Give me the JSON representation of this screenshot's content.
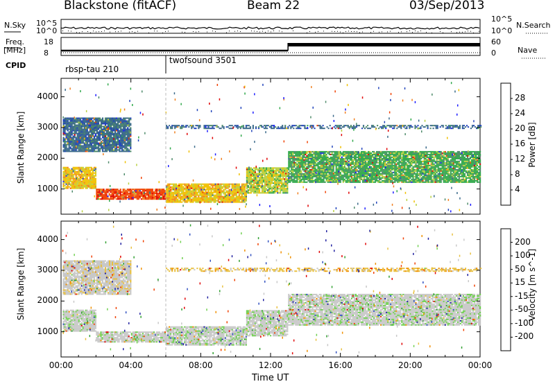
{
  "header": {
    "station": "Blackstone (fitACF)",
    "beam": "Beam 22",
    "date": "03/Sep/2013"
  },
  "summary": {
    "nsky_label": "N.Sky",
    "nsearch_label": "N.Search",
    "freq_label_1": "Freq.",
    "freq_label_2": "[MHz]",
    "nave_label": "Nave",
    "cpid_label": "CPID",
    "nsky_ticks": [
      "10^5",
      "10^0"
    ],
    "freq_ticks": [
      "18",
      "8"
    ],
    "nave_ticks": [
      "60",
      "0"
    ],
    "cpid_segments": [
      {
        "name": "rbsp-tau 210",
        "start_hr": 0,
        "end_hr": 6
      },
      {
        "name": "twofsound 3501",
        "start_hr": 6,
        "end_hr": 24
      }
    ]
  },
  "x_axis": {
    "label": "Time UT",
    "ticks": [
      "00:00",
      "04:00",
      "08:00",
      "12:00",
      "16:00",
      "20:00",
      "00:00"
    ]
  },
  "colors": {
    "power": [
      "#1a1aff",
      "#2244bb",
      "#3a6a8a",
      "#4e8a6a",
      "#2fa84a",
      "#b8d040",
      "#f0c000",
      "#f08020",
      "#f04000",
      "#e00000"
    ],
    "velocity": [
      "#e00000",
      "#f04000",
      "#f09000",
      "#e8c040",
      "#c8c8c8",
      "#c8c8c8",
      "#70d050",
      "#30a030",
      "#3050c0",
      "#2020a0"
    ]
  },
  "chart_data": [
    {
      "type": "heatmap",
      "title": "",
      "xlabel": "Time UT",
      "ylabel": "Slant Range [km]",
      "xlim": [
        0,
        24
      ],
      "ylim": [
        180,
        4600
      ],
      "yticks": [
        "1000",
        "2000",
        "3000",
        "4000"
      ],
      "colorbar_label": "Power [dB]",
      "colorbar_ticks": [
        "4",
        "8",
        "12",
        "16",
        "20",
        "24",
        "28"
      ],
      "colorbar_range": [
        0,
        30
      ],
      "echo_regions": [
        {
          "t0": 0.1,
          "t1": 2.0,
          "r0": 1000,
          "r1": 1700,
          "value": 20
        },
        {
          "t0": 2.0,
          "t1": 6.0,
          "r0": 650,
          "r1": 1000,
          "value": 24
        },
        {
          "t0": 6.0,
          "t1": 10.6,
          "r0": 550,
          "r1": 1150,
          "value": 20
        },
        {
          "t0": 10.6,
          "t1": 13.0,
          "r0": 850,
          "r1": 1700,
          "value": 16
        },
        {
          "t0": 13.0,
          "t1": 24.0,
          "r0": 1200,
          "r1": 2200,
          "value": 14
        },
        {
          "t0": 0.1,
          "t1": 4.0,
          "r0": 2200,
          "r1": 3300,
          "value": 6
        },
        {
          "t0": 6.0,
          "t1": 24.0,
          "r0": 2950,
          "r1": 3050,
          "value": 6
        }
      ]
    },
    {
      "type": "heatmap",
      "title": "",
      "xlabel": "Time UT",
      "ylabel": "Slant Range [km]",
      "xlim": [
        0,
        24
      ],
      "ylim": [
        180,
        4600
      ],
      "yticks": [
        "1000",
        "2000",
        "3000",
        "4000"
      ],
      "colorbar_label": "Velocity [m s^-1]",
      "colorbar_ticks": [
        "200",
        "100",
        "50",
        "15",
        "-15",
        "-50",
        "-100",
        "-200"
      ],
      "colorbar_range": [
        -250,
        250
      ],
      "echo_regions": [
        {
          "t0": 0.1,
          "t1": 2.0,
          "r0": 1000,
          "r1": 1700,
          "value": 0
        },
        {
          "t0": 2.0,
          "t1": 6.0,
          "r0": 650,
          "r1": 1000,
          "value": 0
        },
        {
          "t0": 6.0,
          "t1": 10.6,
          "r0": 550,
          "r1": 1150,
          "value": 30
        },
        {
          "t0": 10.6,
          "t1": 13.0,
          "r0": 850,
          "r1": 1700,
          "value": 10
        },
        {
          "t0": 13.0,
          "t1": 24.0,
          "r0": 1200,
          "r1": 2200,
          "value": 0
        },
        {
          "t0": 0.1,
          "t1": 4.0,
          "r0": 2200,
          "r1": 3300,
          "value": -10
        },
        {
          "t0": 6.0,
          "t1": 24.0,
          "r0": 2950,
          "r1": 3050,
          "value": -80
        }
      ]
    }
  ]
}
